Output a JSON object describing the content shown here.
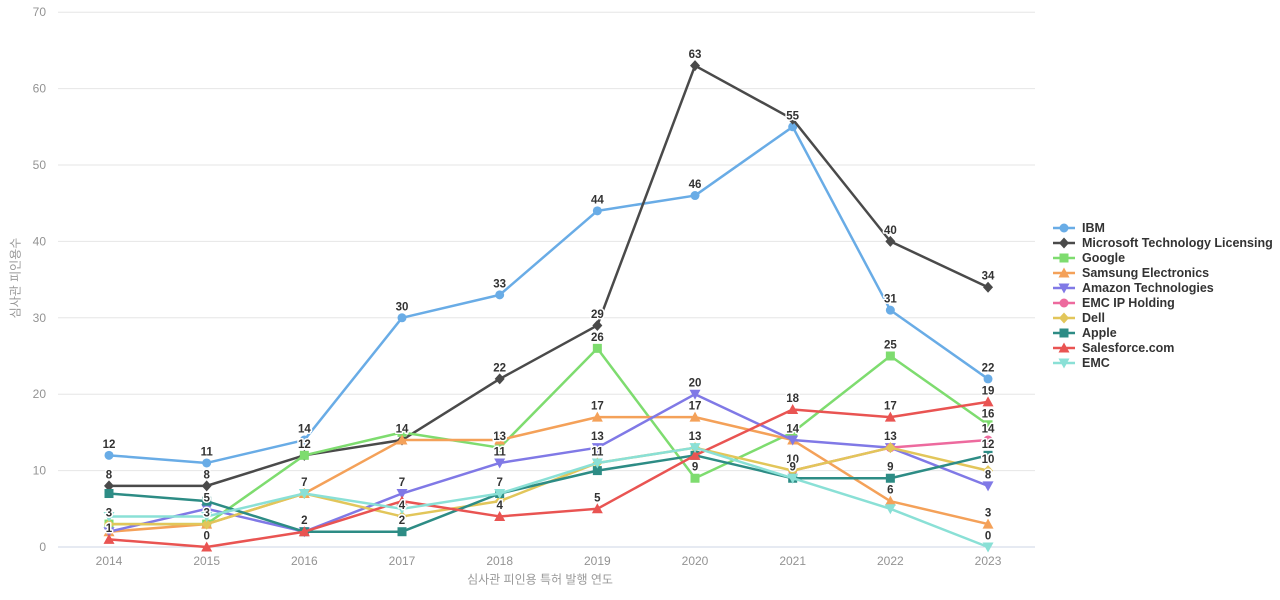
{
  "chart_data": {
    "type": "line",
    "x": [
      2014,
      2015,
      2016,
      2017,
      2018,
      2019,
      2020,
      2021,
      2022,
      2023
    ],
    "xlabel": "심사관 피인용 특허 발행 연도",
    "ylabel": "심사관 피인용수",
    "ylim": [
      0,
      70
    ],
    "yticks": [
      0,
      10,
      20,
      30,
      40,
      50,
      60,
      70
    ],
    "grid": true,
    "legend_position": "right",
    "series": [
      {
        "name": "IBM",
        "color": "#69ace6",
        "marker": "circle",
        "values": [
          12,
          11,
          14,
          30,
          33,
          44,
          46,
          55,
          31,
          22
        ],
        "label_shown": [
          1,
          1,
          1,
          1,
          1,
          1,
          1,
          1,
          1,
          1
        ]
      },
      {
        "name": "Microsoft Technology Licensing",
        "color": "#4a4a4a",
        "marker": "diamond",
        "values": [
          8,
          8,
          12,
          14,
          22,
          29,
          63,
          56,
          40,
          34
        ],
        "label_shown": [
          1,
          1,
          1,
          0,
          1,
          1,
          1,
          0,
          1,
          1
        ]
      },
      {
        "name": "Google",
        "color": "#7edc6f",
        "marker": "square",
        "values": [
          3,
          3,
          12,
          15,
          13,
          26,
          9,
          15,
          25,
          16
        ],
        "label_shown": [
          1,
          1,
          0,
          0,
          1,
          1,
          1,
          0,
          1,
          1
        ]
      },
      {
        "name": "Samsung Electronics",
        "color": "#f4a159",
        "marker": "triangle-up",
        "values": [
          2,
          3,
          7,
          14,
          14,
          17,
          17,
          14,
          6,
          3
        ],
        "label_shown": [
          0,
          0,
          0,
          1,
          0,
          1,
          1,
          0,
          1,
          1
        ]
      },
      {
        "name": "Amazon Technologies",
        "color": "#8079e6",
        "marker": "triangle-down",
        "values": [
          2,
          5,
          2,
          7,
          11,
          13,
          20,
          14,
          13,
          8
        ],
        "label_shown": [
          0,
          1,
          0,
          1,
          1,
          1,
          1,
          1,
          0,
          1
        ]
      },
      {
        "name": "EMC IP Holding",
        "color": "#ed6a9e",
        "marker": "circle",
        "values": [
          null,
          null,
          null,
          null,
          null,
          null,
          null,
          10,
          13,
          14
        ],
        "label_shown": [
          0,
          0,
          0,
          0,
          0,
          0,
          0,
          0,
          0,
          1
        ]
      },
      {
        "name": "Dell",
        "color": "#e2c65a",
        "marker": "diamond",
        "values": [
          3,
          3,
          7,
          4,
          6,
          11,
          13,
          10,
          13,
          10
        ],
        "label_shown": [
          0,
          0,
          0,
          1,
          0,
          0,
          0,
          1,
          1,
          1
        ]
      },
      {
        "name": "Apple",
        "color": "#2d8c85",
        "marker": "square",
        "values": [
          7,
          6,
          2,
          2,
          7,
          10,
          12,
          9,
          9,
          12
        ],
        "label_shown": [
          0,
          0,
          0,
          1,
          1,
          0,
          0,
          1,
          1,
          1
        ]
      },
      {
        "name": "Salesforce.com",
        "color": "#e95452",
        "marker": "triangle-up",
        "values": [
          1,
          0,
          2,
          6,
          4,
          5,
          12,
          18,
          17,
          19
        ],
        "label_shown": [
          1,
          1,
          1,
          0,
          1,
          1,
          0,
          1,
          1,
          1
        ]
      },
      {
        "name": "EMC",
        "color": "#8ae0d6",
        "marker": "triangle-down",
        "values": [
          4,
          4,
          7,
          5,
          7,
          11,
          13,
          9,
          5,
          0
        ],
        "label_shown": [
          0,
          0,
          1,
          0,
          0,
          1,
          1,
          0,
          0,
          1
        ]
      }
    ]
  }
}
